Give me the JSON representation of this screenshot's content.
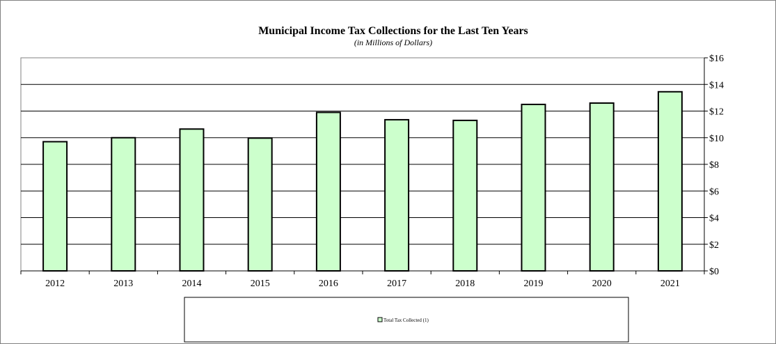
{
  "chart_data": {
    "type": "bar",
    "title": "Municipal Income Tax Collections for the Last Ten Years",
    "subtitle": "(in Millions of Dollars)",
    "categories": [
      "2012",
      "2013",
      "2014",
      "2015",
      "2016",
      "2017",
      "2018",
      "2019",
      "2020",
      "2021"
    ],
    "series": [
      {
        "name": "Total Tax Collected (1)",
        "values": [
          9.7,
          10.0,
          10.65,
          9.97,
          11.9,
          11.35,
          11.3,
          12.5,
          12.6,
          13.45
        ]
      }
    ],
    "ylim": [
      0,
      16
    ],
    "yticks": [
      0,
      2,
      4,
      6,
      8,
      10,
      12,
      14,
      16
    ],
    "ytick_labels": [
      "$0",
      "$2",
      "$4",
      "$6",
      "$8",
      "$10",
      "$12",
      "$14",
      "$16"
    ],
    "y_axis_side": "right",
    "grid": true,
    "legend_position": "bottom",
    "colors": {
      "bar_fill": "#ccffcc",
      "bar_stroke": "#000000",
      "grid": "#000000",
      "frame": "#808080"
    }
  }
}
